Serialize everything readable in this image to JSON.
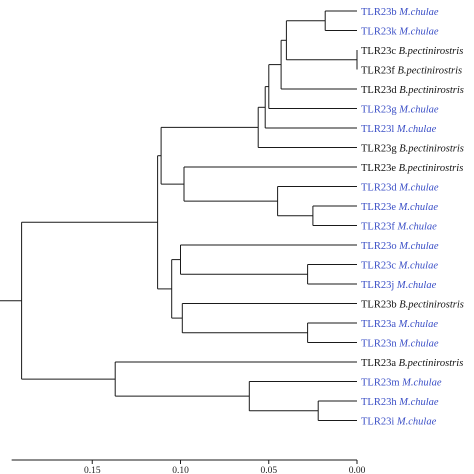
{
  "colors": {
    "branch": "#1a1a1a",
    "axis": "#1a1a1a",
    "mchulae_label": "#3b4fc6",
    "bpect_label": "#111111"
  },
  "tree": {
    "leaves": [
      {
        "id": "l1",
        "gene": "TLR23b",
        "species": "M.chulae",
        "color_key": "mchulae_label"
      },
      {
        "id": "l2",
        "gene": "TLR23k",
        "species": "M.chulae",
        "color_key": "mchulae_label"
      },
      {
        "id": "l3",
        "gene": "TLR23c",
        "species": "B.pectinirostris",
        "color_key": "bpect_label"
      },
      {
        "id": "l4",
        "gene": "TLR23f",
        "species": "B.pectinirostris",
        "color_key": "bpect_label"
      },
      {
        "id": "l5",
        "gene": "TLR23d",
        "species": "B.pectinirostris",
        "color_key": "bpect_label"
      },
      {
        "id": "l6",
        "gene": "TLR23g",
        "species": "M.chulae",
        "color_key": "mchulae_label"
      },
      {
        "id": "l7",
        "gene": "TLR23l",
        "species": "M.chulae",
        "color_key": "mchulae_label"
      },
      {
        "id": "l8",
        "gene": "TLR23g",
        "species": "B.pectinirostris",
        "color_key": "bpect_label"
      },
      {
        "id": "l9",
        "gene": "TLR23e",
        "species": "B.pectinirostris",
        "color_key": "bpect_label"
      },
      {
        "id": "l10",
        "gene": "TLR23d",
        "species": "M.chulae",
        "color_key": "mchulae_label"
      },
      {
        "id": "l11",
        "gene": "TLR23e",
        "species": "M.chulae",
        "color_key": "mchulae_label"
      },
      {
        "id": "l12",
        "gene": "TLR23f",
        "species": "M.chulae",
        "color_key": "mchulae_label"
      },
      {
        "id": "l13",
        "gene": "TLR23o",
        "species": "M.chulae",
        "color_key": "mchulae_label"
      },
      {
        "id": "l14",
        "gene": "TLR23c",
        "species": "M.chulae",
        "color_key": "mchulae_label"
      },
      {
        "id": "l15",
        "gene": "TLR23j",
        "species": "M.chulae",
        "color_key": "mchulae_label"
      },
      {
        "id": "l16",
        "gene": "TLR23b",
        "species": "B.pectinirostris",
        "color_key": "bpect_label"
      },
      {
        "id": "l17",
        "gene": "TLR23a",
        "species": "M.chulae",
        "color_key": "mchulae_label"
      },
      {
        "id": "l18",
        "gene": "TLR23n",
        "species": "M.chulae",
        "color_key": "mchulae_label"
      },
      {
        "id": "l19",
        "gene": "TLR23a",
        "species": "B.pectinirostris",
        "color_key": "bpect_label"
      },
      {
        "id": "l20",
        "gene": "TLR23m",
        "species": "M.chulae",
        "color_key": "mchulae_label"
      },
      {
        "id": "l21",
        "gene": "TLR23h",
        "species": "M.chulae",
        "color_key": "mchulae_label"
      },
      {
        "id": "l22",
        "gene": "TLR23i",
        "species": "M.chulae",
        "color_key": "mchulae_label"
      }
    ],
    "nodes": [
      {
        "id": "n1",
        "depth": 0.018,
        "children": [
          "l1",
          "l2"
        ]
      },
      {
        "id": "n2",
        "depth": 0.0,
        "children": [
          "l3",
          "l4"
        ]
      },
      {
        "id": "n3",
        "depth": 0.04,
        "children": [
          "n1",
          "n2"
        ]
      },
      {
        "id": "n4",
        "depth": 0.043,
        "children": [
          "n3",
          "l5"
        ]
      },
      {
        "id": "n5",
        "depth": 0.05,
        "children": [
          "n4",
          "l6"
        ]
      },
      {
        "id": "n6",
        "depth": 0.052,
        "children": [
          "n5",
          "l7"
        ]
      },
      {
        "id": "n7",
        "depth": 0.056,
        "children": [
          "n6",
          "l8"
        ]
      },
      {
        "id": "n8",
        "depth": 0.025,
        "children": [
          "l11",
          "l12"
        ]
      },
      {
        "id": "n9",
        "depth": 0.045,
        "children": [
          "l10",
          "n8"
        ]
      },
      {
        "id": "n10",
        "depth": 0.098,
        "children": [
          "l9",
          "n9"
        ]
      },
      {
        "id": "n11",
        "depth": 0.111,
        "children": [
          "n7",
          "n10"
        ]
      },
      {
        "id": "n12",
        "depth": 0.028,
        "children": [
          "l14",
          "l15"
        ]
      },
      {
        "id": "n13",
        "depth": 0.1,
        "children": [
          "l13",
          "n12"
        ]
      },
      {
        "id": "n14",
        "depth": 0.028,
        "children": [
          "l17",
          "l18"
        ]
      },
      {
        "id": "n15",
        "depth": 0.099,
        "children": [
          "l16",
          "n14"
        ]
      },
      {
        "id": "n16",
        "depth": 0.105,
        "children": [
          "n13",
          "n15"
        ]
      },
      {
        "id": "n17",
        "depth": 0.113,
        "children": [
          "n11",
          "n16"
        ]
      },
      {
        "id": "n18",
        "depth": 0.022,
        "children": [
          "l21",
          "l22"
        ]
      },
      {
        "id": "n19",
        "depth": 0.061,
        "children": [
          "l20",
          "n18"
        ]
      },
      {
        "id": "n20",
        "depth": 0.137,
        "children": [
          "l19",
          "n19"
        ]
      },
      {
        "id": "n21",
        "depth": 0.19,
        "children": [
          "n17",
          "n20"
        ]
      }
    ],
    "root": "n21",
    "root_stub": 0.016
  },
  "axis": {
    "reversed": true,
    "range": [
      0.0,
      0.19
    ],
    "ticks": [
      {
        "value": 0.15,
        "label": "0.15"
      },
      {
        "value": 0.1,
        "label": "0.10"
      },
      {
        "value": 0.05,
        "label": "0.05"
      },
      {
        "value": 0.0,
        "label": "0.00"
      }
    ]
  }
}
